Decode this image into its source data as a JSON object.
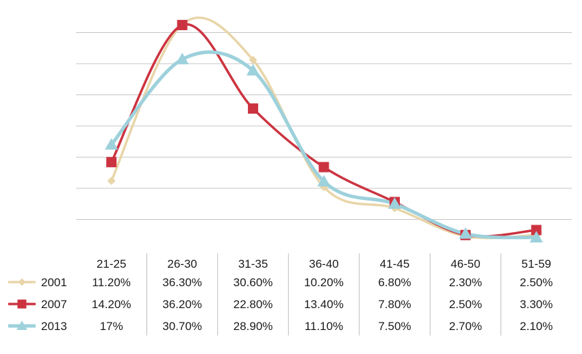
{
  "chart_data": {
    "type": "line",
    "categories": [
      "21-25",
      "26-30",
      "31-35",
      "36-40",
      "41-45",
      "46-50",
      "51-59"
    ],
    "ylim": [
      0,
      40
    ],
    "grid": true,
    "legend": "data table (left of rows)",
    "series": [
      {
        "name": "2001",
        "color": "#e8d5a8",
        "marker": "diamond",
        "values": [
          11.2,
          36.3,
          30.6,
          10.2,
          6.8,
          2.3,
          2.5
        ],
        "labels": [
          "11.20%",
          "36.30%",
          "30.60%",
          "10.20%",
          "6.80%",
          "2.30%",
          "2.50%"
        ]
      },
      {
        "name": "2007",
        "color": "#cc3340",
        "marker": "square",
        "values": [
          14.2,
          36.2,
          22.8,
          13.4,
          7.8,
          2.5,
          3.3
        ],
        "labels": [
          "14.20%",
          "36.20%",
          "22.80%",
          "13.40%",
          "7.80%",
          "2.50%",
          "3.30%"
        ]
      },
      {
        "name": "2013",
        "color": "#9dd1dc",
        "marker": "triangle",
        "values": [
          17,
          30.7,
          28.9,
          11.1,
          7.5,
          2.7,
          2.1
        ],
        "labels": [
          "17%",
          "30.70%",
          "28.90%",
          "11.10%",
          "7.50%",
          "2.70%",
          "2.10%"
        ]
      }
    ]
  }
}
